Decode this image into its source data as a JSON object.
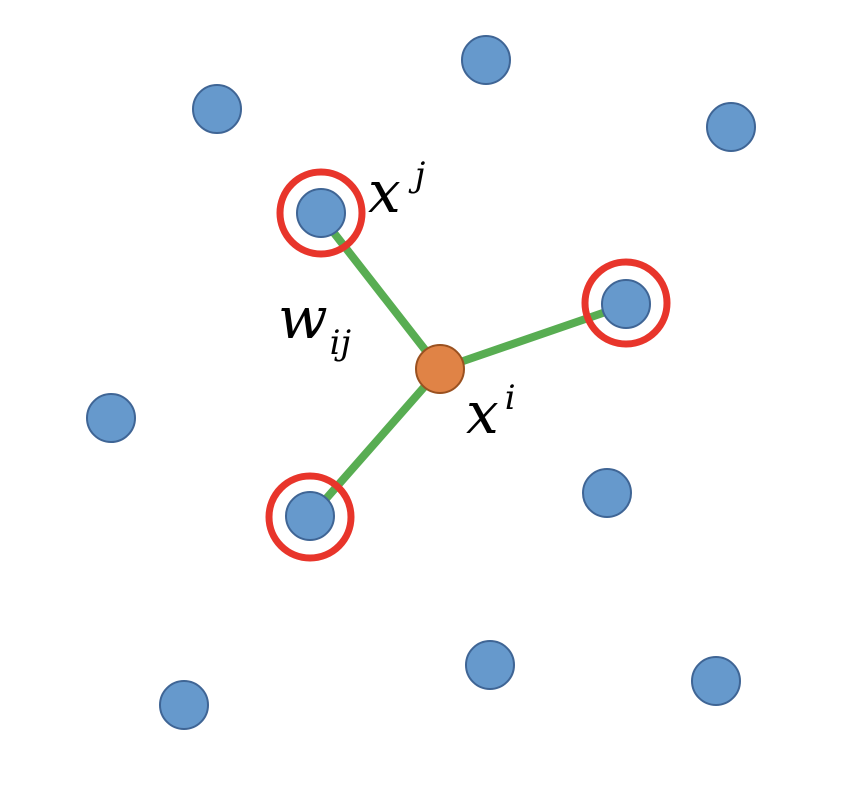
{
  "labels": {
    "xj_base": "x",
    "xj_sup": "j",
    "wij_base": "w",
    "wij_sub": "ij",
    "xi_base": "x",
    "xi_sup": "i"
  },
  "colors": {
    "point_fill": "#6699cc",
    "point_stroke": "#3f6595",
    "center_fill": "#e08346",
    "center_stroke": "#9a5120",
    "neighbor_ring": "#e8352b",
    "edge": "#58ad52"
  }
}
